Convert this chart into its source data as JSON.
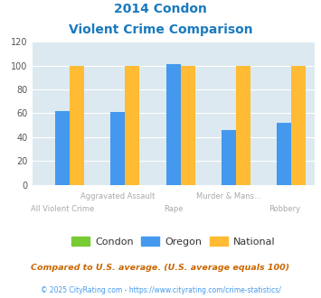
{
  "title_line1": "2014 Condon",
  "title_line2": "Violent Crime Comparison",
  "title_color": "#1a7abf",
  "categories": [
    "All Violent Crime",
    "Aggravated Assault",
    "Rape",
    "Murder & Mans...",
    "Robbery"
  ],
  "upper_cats": [
    "Aggravated Assault",
    "Murder & Mans..."
  ],
  "lower_cats": [
    "All Violent Crime",
    "Rape",
    "Robbery"
  ],
  "condon_values": [
    0,
    0,
    0,
    0,
    0
  ],
  "oregon_values": [
    62,
    61,
    101,
    46,
    52
  ],
  "national_values": [
    100,
    100,
    100,
    100,
    100
  ],
  "condon_color": "#77cc33",
  "oregon_color": "#4499ee",
  "national_color": "#ffbb33",
  "bg_color": "#dce9f0",
  "ylim": [
    0,
    120
  ],
  "yticks": [
    0,
    20,
    40,
    60,
    80,
    100,
    120
  ],
  "footnote1": "Compared to U.S. average. (U.S. average equals 100)",
  "footnote2": "© 2025 CityRating.com - https://www.cityrating.com/crime-statistics/",
  "footnote1_color": "#cc6600",
  "footnote2_color": "#4499ee",
  "label_color": "#aaaaaa"
}
